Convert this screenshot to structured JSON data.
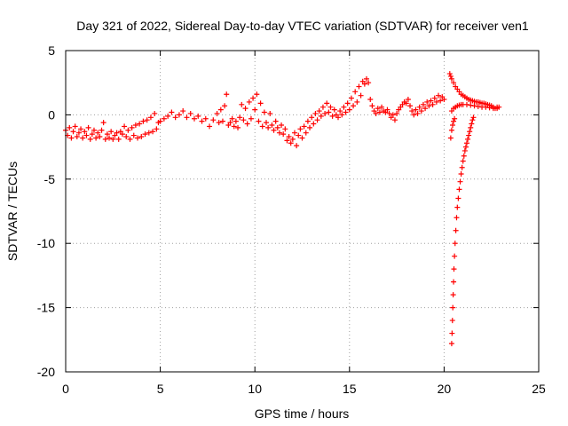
{
  "chart_data": {
    "type": "scatter",
    "title": "Day 321 of 2022, Sidereal Day-to-day VTEC variation (SDTVAR) for receiver ven1",
    "xlabel": "GPS time / hours",
    "ylabel": "SDTVAR / TECUs",
    "xlim": [
      0,
      25
    ],
    "ylim": [
      -20,
      5
    ],
    "x_ticks": [
      0,
      5,
      10,
      15,
      20,
      25
    ],
    "y_ticks": [
      -20,
      -15,
      -10,
      -5,
      0,
      5
    ],
    "x_tick_labels": [
      "0",
      "5",
      "10",
      "15",
      "20",
      "25"
    ],
    "y_tick_labels": [
      "-20",
      "-15",
      "-10",
      "-5",
      "0",
      "5"
    ],
    "grid": true,
    "marker": "+",
    "series": [
      {
        "name": "ven1",
        "color": "#ff0000",
        "points": [
          [
            0.0,
            -1.2
          ],
          [
            0.1,
            -1.6
          ],
          [
            0.2,
            -1.0
          ],
          [
            0.3,
            -1.8
          ],
          [
            0.4,
            -1.3
          ],
          [
            0.5,
            -0.9
          ],
          [
            0.6,
            -1.7
          ],
          [
            0.7,
            -1.4
          ],
          [
            0.8,
            -1.1
          ],
          [
            0.9,
            -1.8
          ],
          [
            1.0,
            -1.3
          ],
          [
            1.1,
            -1.6
          ],
          [
            1.2,
            -1.0
          ],
          [
            1.3,
            -1.9
          ],
          [
            1.4,
            -1.5
          ],
          [
            1.5,
            -1.2
          ],
          [
            1.6,
            -1.8
          ],
          [
            1.7,
            -1.4
          ],
          [
            1.8,
            -1.7
          ],
          [
            1.9,
            -1.2
          ],
          [
            2.0,
            -0.6
          ],
          [
            2.1,
            -1.9
          ],
          [
            2.2,
            -1.5
          ],
          [
            2.3,
            -1.8
          ],
          [
            2.4,
            -1.3
          ],
          [
            2.5,
            -1.9
          ],
          [
            2.6,
            -1.6
          ],
          [
            2.7,
            -1.4
          ],
          [
            2.8,
            -1.9
          ],
          [
            2.9,
            -1.3
          ],
          [
            3.0,
            -1.5
          ],
          [
            3.1,
            -0.9
          ],
          [
            3.2,
            -1.7
          ],
          [
            3.3,
            -1.2
          ],
          [
            3.4,
            -1.9
          ],
          [
            3.5,
            -1.0
          ],
          [
            3.6,
            -1.6
          ],
          [
            3.7,
            -0.8
          ],
          [
            3.8,
            -1.8
          ],
          [
            3.9,
            -0.7
          ],
          [
            4.0,
            -1.7
          ],
          [
            4.1,
            -0.5
          ],
          [
            4.2,
            -1.5
          ],
          [
            4.3,
            -0.4
          ],
          [
            4.4,
            -1.4
          ],
          [
            4.5,
            -0.2
          ],
          [
            4.6,
            -1.3
          ],
          [
            4.7,
            0.1
          ],
          [
            4.8,
            -1.1
          ],
          [
            4.9,
            -0.6
          ],
          [
            5.0,
            -0.5
          ],
          [
            5.2,
            -0.3
          ],
          [
            5.4,
            -0.1
          ],
          [
            5.6,
            0.2
          ],
          [
            5.8,
            -0.2
          ],
          [
            6.0,
            0.0
          ],
          [
            6.2,
            0.3
          ],
          [
            6.4,
            -0.2
          ],
          [
            6.6,
            0.1
          ],
          [
            6.8,
            -0.3
          ],
          [
            7.0,
            -0.1
          ],
          [
            7.2,
            -0.5
          ],
          [
            7.4,
            -0.3
          ],
          [
            7.6,
            -0.9
          ],
          [
            7.8,
            -0.4
          ],
          [
            8.0,
            0.1
          ],
          [
            8.1,
            -0.6
          ],
          [
            8.2,
            0.4
          ],
          [
            8.3,
            -0.5
          ],
          [
            8.4,
            0.7
          ],
          [
            8.5,
            1.6
          ],
          [
            8.6,
            -0.8
          ],
          [
            8.7,
            -0.6
          ],
          [
            8.8,
            -0.3
          ],
          [
            8.9,
            -0.9
          ],
          [
            9.0,
            -0.5
          ],
          [
            9.1,
            -1.0
          ],
          [
            9.2,
            -0.2
          ],
          [
            9.3,
            0.8
          ],
          [
            9.4,
            -0.4
          ],
          [
            9.5,
            0.5
          ],
          [
            9.6,
            -0.7
          ],
          [
            9.7,
            1.0
          ],
          [
            9.8,
            -0.3
          ],
          [
            9.9,
            1.3
          ],
          [
            10.0,
            0.4
          ],
          [
            10.1,
            1.6
          ],
          [
            10.2,
            -0.5
          ],
          [
            10.3,
            0.9
          ],
          [
            10.4,
            -0.9
          ],
          [
            10.5,
            0.2
          ],
          [
            10.6,
            -0.6
          ],
          [
            10.7,
            -1.0
          ],
          [
            10.8,
            0.1
          ],
          [
            10.9,
            -0.8
          ],
          [
            11.0,
            -1.2
          ],
          [
            11.1,
            -0.5
          ],
          [
            11.2,
            -1.0
          ],
          [
            11.3,
            -1.4
          ],
          [
            11.4,
            -0.8
          ],
          [
            11.5,
            -1.5
          ],
          [
            11.6,
            -1.1
          ],
          [
            11.7,
            -2.0
          ],
          [
            11.8,
            -1.7
          ],
          [
            11.9,
            -2.2
          ],
          [
            12.0,
            -1.9
          ],
          [
            12.1,
            -1.4
          ],
          [
            12.2,
            -2.4
          ],
          [
            12.3,
            -1.6
          ],
          [
            12.4,
            -1.1
          ],
          [
            12.5,
            -1.8
          ],
          [
            12.6,
            -0.9
          ],
          [
            12.7,
            -1.4
          ],
          [
            12.8,
            -0.5
          ],
          [
            12.9,
            -1.0
          ],
          [
            13.0,
            -0.2
          ],
          [
            13.1,
            -0.7
          ],
          [
            13.2,
            0.1
          ],
          [
            13.3,
            -0.4
          ],
          [
            13.4,
            0.3
          ],
          [
            13.5,
            -0.1
          ],
          [
            13.6,
            0.6
          ],
          [
            13.7,
            0.1
          ],
          [
            13.8,
            0.9
          ],
          [
            13.9,
            0.2
          ],
          [
            14.0,
            0.6
          ],
          [
            14.1,
            -0.1
          ],
          [
            14.2,
            0.4
          ],
          [
            14.3,
            0.0
          ],
          [
            14.4,
            -0.2
          ],
          [
            14.5,
            0.3
          ],
          [
            14.6,
            0.0
          ],
          [
            14.7,
            0.6
          ],
          [
            14.8,
            0.2
          ],
          [
            14.9,
            0.9
          ],
          [
            15.0,
            0.4
          ],
          [
            15.1,
            1.3
          ],
          [
            15.2,
            0.7
          ],
          [
            15.3,
            1.8
          ],
          [
            15.4,
            1.0
          ],
          [
            15.5,
            2.2
          ],
          [
            15.6,
            1.5
          ],
          [
            15.7,
            2.6
          ],
          [
            15.8,
            2.4
          ],
          [
            15.9,
            2.8
          ],
          [
            16.0,
            2.5
          ],
          [
            16.1,
            1.2
          ],
          [
            16.2,
            0.7
          ],
          [
            16.3,
            0.3
          ],
          [
            16.4,
            0.1
          ],
          [
            16.5,
            0.5
          ],
          [
            16.6,
            0.2
          ],
          [
            16.7,
            0.6
          ],
          [
            16.8,
            0.3
          ],
          [
            16.9,
            0.2
          ],
          [
            17.0,
            0.4
          ],
          [
            17.1,
            0.1
          ],
          [
            17.2,
            -0.2
          ],
          [
            17.3,
            0.0
          ],
          [
            17.4,
            -0.4
          ],
          [
            17.5,
            0.1
          ],
          [
            17.6,
            0.4
          ],
          [
            17.7,
            0.6
          ],
          [
            17.8,
            0.8
          ],
          [
            17.9,
            1.0
          ],
          [
            18.0,
            0.9
          ],
          [
            18.1,
            1.2
          ],
          [
            18.2,
            0.7
          ],
          [
            18.3,
            0.3
          ],
          [
            18.4,
            0.0
          ],
          [
            18.5,
            0.4
          ],
          [
            18.6,
            0.1
          ],
          [
            18.7,
            0.6
          ],
          [
            18.8,
            0.3
          ],
          [
            18.9,
            0.8
          ],
          [
            19.0,
            0.5
          ],
          [
            19.1,
            1.0
          ],
          [
            19.2,
            0.7
          ],
          [
            19.3,
            1.1
          ],
          [
            19.4,
            0.8
          ],
          [
            19.5,
            1.3
          ],
          [
            19.6,
            1.0
          ],
          [
            19.7,
            1.5
          ],
          [
            19.8,
            1.1
          ],
          [
            19.9,
            1.4
          ],
          [
            20.0,
            1.2
          ],
          [
            20.3,
            3.2
          ],
          [
            20.35,
            3.0
          ],
          [
            20.4,
            2.8
          ],
          [
            20.5,
            2.5
          ],
          [
            20.6,
            2.2
          ],
          [
            20.7,
            2.0
          ],
          [
            20.8,
            1.8
          ],
          [
            20.9,
            1.6
          ],
          [
            21.0,
            1.5
          ],
          [
            21.1,
            1.4
          ],
          [
            21.2,
            1.3
          ],
          [
            21.3,
            1.2
          ],
          [
            21.4,
            1.15
          ],
          [
            21.5,
            1.1
          ],
          [
            21.6,
            1.05
          ],
          [
            21.7,
            1.0
          ],
          [
            21.8,
            1.0
          ],
          [
            21.9,
            0.95
          ],
          [
            22.0,
            0.9
          ],
          [
            22.1,
            0.9
          ],
          [
            22.2,
            0.85
          ],
          [
            22.3,
            0.8
          ],
          [
            22.4,
            0.75
          ],
          [
            22.5,
            0.7
          ],
          [
            22.6,
            0.6
          ],
          [
            22.7,
            0.5
          ],
          [
            22.8,
            0.6
          ],
          [
            22.9,
            0.6
          ],
          [
            20.4,
            0.3
          ],
          [
            20.5,
            0.5
          ],
          [
            20.6,
            0.6
          ],
          [
            20.7,
            0.7
          ],
          [
            20.8,
            0.75
          ],
          [
            20.9,
            0.8
          ],
          [
            21.0,
            0.8
          ],
          [
            21.2,
            0.8
          ],
          [
            21.4,
            0.75
          ],
          [
            21.6,
            0.7
          ],
          [
            21.8,
            0.65
          ],
          [
            22.0,
            0.6
          ],
          [
            22.2,
            0.6
          ],
          [
            22.4,
            0.55
          ],
          [
            22.6,
            0.5
          ],
          [
            22.8,
            0.5
          ],
          [
            20.4,
            -17.8
          ],
          [
            20.42,
            -17.0
          ],
          [
            20.44,
            -16.0
          ],
          [
            20.46,
            -15.0
          ],
          [
            20.48,
            -14.0
          ],
          [
            20.5,
            -13.0
          ],
          [
            20.52,
            -12.0
          ],
          [
            20.55,
            -11.0
          ],
          [
            20.58,
            -10.0
          ],
          [
            20.62,
            -9.0
          ],
          [
            20.66,
            -8.0
          ],
          [
            20.7,
            -7.2
          ],
          [
            20.75,
            -6.5
          ],
          [
            20.8,
            -5.8
          ],
          [
            20.85,
            -5.2
          ],
          [
            20.9,
            -4.6
          ],
          [
            20.95,
            -4.1
          ],
          [
            21.0,
            -3.6
          ],
          [
            21.05,
            -3.2
          ],
          [
            21.1,
            -2.8
          ],
          [
            21.15,
            -2.5
          ],
          [
            21.2,
            -2.2
          ],
          [
            21.25,
            -1.9
          ],
          [
            21.3,
            -1.6
          ],
          [
            21.35,
            -1.3
          ],
          [
            21.4,
            -1.0
          ],
          [
            21.45,
            -0.7
          ],
          [
            21.5,
            -0.4
          ],
          [
            21.55,
            -0.2
          ],
          [
            20.35,
            -1.8
          ],
          [
            20.4,
            -1.2
          ],
          [
            20.45,
            -0.8
          ],
          [
            20.5,
            -0.5
          ],
          [
            20.55,
            -0.3
          ]
        ]
      }
    ]
  }
}
